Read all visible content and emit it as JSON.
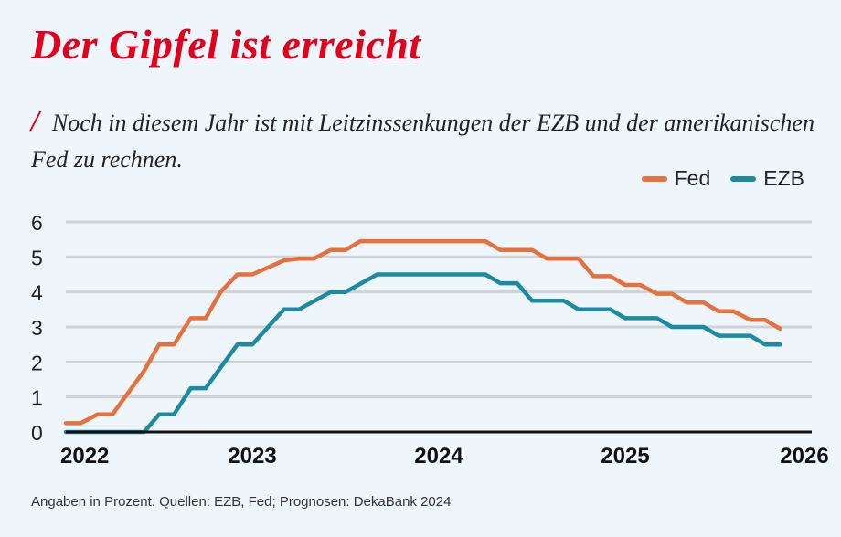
{
  "header": {
    "title": "Der Gipfel ist erreicht",
    "slash": "/",
    "subtitle": "Noch in diesem Jahr ist mit Leitzinssenkungen der EZB und der amerikanischen Fed zu rechnen."
  },
  "legend": [
    {
      "name": "Fed",
      "color": "#e5713d"
    },
    {
      "name": "EZB",
      "color": "#1d8aa3"
    }
  ],
  "footnote": "Angaben in Prozent. Quellen: EZB, Fed; Prognosen: DekaBank 2024",
  "chart_data": {
    "type": "line",
    "xlabel": "",
    "ylabel": "",
    "xlim": [
      2022.0,
      2026.0
    ],
    "ylim": [
      0,
      6
    ],
    "xticks": [
      "2022",
      "2023",
      "2024",
      "2025",
      "2026"
    ],
    "yticks": [
      "0",
      "1",
      "2",
      "3",
      "4",
      "5",
      "6"
    ],
    "grid": true,
    "legend_position": "top-right",
    "series": [
      {
        "name": "Fed",
        "color": "#e5713d",
        "points": [
          [
            2022.0,
            0.25
          ],
          [
            2022.08,
            0.25
          ],
          [
            2022.17,
            0.5
          ],
          [
            2022.25,
            0.5
          ],
          [
            2022.42,
            1.75
          ],
          [
            2022.5,
            2.5
          ],
          [
            2022.58,
            2.5
          ],
          [
            2022.67,
            3.25
          ],
          [
            2022.75,
            3.25
          ],
          [
            2022.83,
            4.0
          ],
          [
            2022.92,
            4.5
          ],
          [
            2023.0,
            4.5
          ],
          [
            2023.17,
            4.9
          ],
          [
            2023.25,
            4.95
          ],
          [
            2023.33,
            4.95
          ],
          [
            2023.42,
            5.2
          ],
          [
            2023.5,
            5.2
          ],
          [
            2023.58,
            5.45
          ],
          [
            2024.25,
            5.45
          ],
          [
            2024.33,
            5.2
          ],
          [
            2024.5,
            5.2
          ],
          [
            2024.58,
            4.95
          ],
          [
            2024.75,
            4.95
          ],
          [
            2024.83,
            4.45
          ],
          [
            2024.92,
            4.45
          ],
          [
            2025.0,
            4.2
          ],
          [
            2025.08,
            4.2
          ],
          [
            2025.17,
            3.95
          ],
          [
            2025.25,
            3.95
          ],
          [
            2025.33,
            3.7
          ],
          [
            2025.42,
            3.7
          ],
          [
            2025.5,
            3.45
          ],
          [
            2025.58,
            3.45
          ],
          [
            2025.67,
            3.2
          ],
          [
            2025.75,
            3.2
          ],
          [
            2025.83,
            2.95
          ]
        ]
      },
      {
        "name": "EZB",
        "color": "#1d8aa3",
        "points": [
          [
            2022.0,
            0.0
          ],
          [
            2022.42,
            0.0
          ],
          [
            2022.5,
            0.5
          ],
          [
            2022.58,
            0.5
          ],
          [
            2022.67,
            1.25
          ],
          [
            2022.75,
            1.25
          ],
          [
            2022.92,
            2.5
          ],
          [
            2023.0,
            2.5
          ],
          [
            2023.17,
            3.5
          ],
          [
            2023.25,
            3.5
          ],
          [
            2023.42,
            4.0
          ],
          [
            2023.5,
            4.0
          ],
          [
            2023.67,
            4.5
          ],
          [
            2024.25,
            4.5
          ],
          [
            2024.33,
            4.25
          ],
          [
            2024.42,
            4.25
          ],
          [
            2024.5,
            3.75
          ],
          [
            2024.67,
            3.75
          ],
          [
            2024.75,
            3.5
          ],
          [
            2024.92,
            3.5
          ],
          [
            2025.0,
            3.25
          ],
          [
            2025.17,
            3.25
          ],
          [
            2025.25,
            3.0
          ],
          [
            2025.42,
            3.0
          ],
          [
            2025.5,
            2.75
          ],
          [
            2025.67,
            2.75
          ],
          [
            2025.75,
            2.5
          ],
          [
            2025.83,
            2.5
          ]
        ]
      }
    ]
  }
}
